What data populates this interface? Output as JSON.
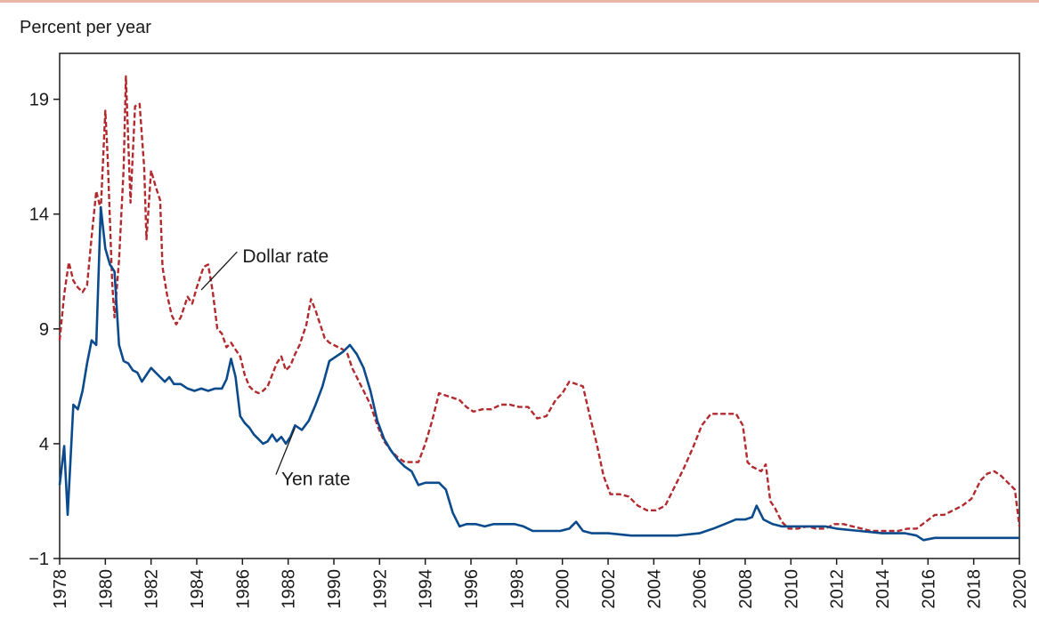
{
  "chart_data": {
    "type": "line",
    "title": "",
    "ylabel": "Percent per year",
    "xlabel": "",
    "xlim": [
      1978,
      2020
    ],
    "ylim": [
      -1,
      21
    ],
    "yticks": [
      -1,
      4,
      9,
      14,
      19
    ],
    "xticks": [
      1978,
      1980,
      1982,
      1984,
      1986,
      1988,
      1990,
      1992,
      1994,
      1996,
      1998,
      2000,
      2002,
      2004,
      2006,
      2008,
      2010,
      2012,
      2014,
      2016,
      2018,
      2020
    ],
    "grid": false,
    "colors": {
      "dollar": "#b22a2e",
      "yen": "#0b4a8c"
    },
    "annotations": [
      {
        "text": "Dollar rate",
        "series": "dollar",
        "at": [
          1984.2,
          10.7
        ],
        "label_at": [
          1986.0,
          12.2
        ]
      },
      {
        "text": "Yen rate",
        "series": "yen",
        "at": [
          1988.3,
          4.7
        ],
        "label_at": [
          1987.7,
          2.5
        ]
      }
    ],
    "series": [
      {
        "name": "Dollar rate",
        "key": "dollar",
        "style": "dashed",
        "points": [
          [
            1978.0,
            8.5
          ],
          [
            1978.2,
            10.5
          ],
          [
            1978.4,
            11.9
          ],
          [
            1978.6,
            11.1
          ],
          [
            1978.8,
            10.8
          ],
          [
            1979.0,
            10.6
          ],
          [
            1979.2,
            10.9
          ],
          [
            1979.4,
            13.0
          ],
          [
            1979.6,
            15.0
          ],
          [
            1979.8,
            14.2
          ],
          [
            1980.0,
            18.5
          ],
          [
            1980.1,
            16.5
          ],
          [
            1980.3,
            11.0
          ],
          [
            1980.4,
            9.5
          ],
          [
            1980.6,
            12.0
          ],
          [
            1980.8,
            16.0
          ],
          [
            1980.9,
            20.0
          ],
          [
            1981.1,
            14.5
          ],
          [
            1981.3,
            18.7
          ],
          [
            1981.5,
            18.8
          ],
          [
            1981.7,
            16.0
          ],
          [
            1981.8,
            12.9
          ],
          [
            1982.0,
            15.9
          ],
          [
            1982.2,
            15.2
          ],
          [
            1982.4,
            14.6
          ],
          [
            1982.5,
            11.7
          ],
          [
            1982.7,
            10.5
          ],
          [
            1982.9,
            9.6
          ],
          [
            1983.1,
            9.2
          ],
          [
            1983.3,
            9.5
          ],
          [
            1983.6,
            10.4
          ],
          [
            1983.8,
            10.1
          ],
          [
            1984.0,
            10.8
          ],
          [
            1984.3,
            11.7
          ],
          [
            1984.5,
            11.8
          ],
          [
            1984.7,
            10.6
          ],
          [
            1984.9,
            9.0
          ],
          [
            1985.1,
            8.8
          ],
          [
            1985.3,
            8.2
          ],
          [
            1985.5,
            8.4
          ],
          [
            1985.7,
            8.1
          ],
          [
            1985.9,
            7.8
          ],
          [
            1986.1,
            7.0
          ],
          [
            1986.3,
            6.5
          ],
          [
            1986.5,
            6.3
          ],
          [
            1986.7,
            6.2
          ],
          [
            1986.9,
            6.3
          ],
          [
            1987.1,
            6.5
          ],
          [
            1987.3,
            7.0
          ],
          [
            1987.5,
            7.5
          ],
          [
            1987.7,
            7.8
          ],
          [
            1987.9,
            7.2
          ],
          [
            1988.1,
            7.4
          ],
          [
            1988.3,
            7.9
          ],
          [
            1988.5,
            8.3
          ],
          [
            1988.8,
            9.2
          ],
          [
            1989.0,
            10.3
          ],
          [
            1989.2,
            9.8
          ],
          [
            1989.4,
            9.2
          ],
          [
            1989.6,
            8.6
          ],
          [
            1989.8,
            8.4
          ],
          [
            1990.0,
            8.3
          ],
          [
            1990.2,
            8.2
          ],
          [
            1990.4,
            8.1
          ],
          [
            1990.6,
            7.9
          ],
          [
            1990.8,
            7.3
          ],
          [
            1991.0,
            6.9
          ],
          [
            1991.3,
            6.3
          ],
          [
            1991.6,
            5.7
          ],
          [
            1991.9,
            4.8
          ],
          [
            1992.2,
            4.1
          ],
          [
            1992.5,
            3.7
          ],
          [
            1992.8,
            3.4
          ],
          [
            1993.1,
            3.2
          ],
          [
            1993.4,
            3.2
          ],
          [
            1993.7,
            3.2
          ],
          [
            1994.0,
            4.0
          ],
          [
            1994.3,
            5.0
          ],
          [
            1994.6,
            6.2
          ],
          [
            1994.9,
            6.1
          ],
          [
            1995.2,
            6.0
          ],
          [
            1995.5,
            5.9
          ],
          [
            1995.8,
            5.6
          ],
          [
            1996.1,
            5.4
          ],
          [
            1996.5,
            5.5
          ],
          [
            1996.9,
            5.5
          ],
          [
            1997.3,
            5.7
          ],
          [
            1997.7,
            5.7
          ],
          [
            1998.1,
            5.6
          ],
          [
            1998.5,
            5.6
          ],
          [
            1998.9,
            5.1
          ],
          [
            1999.3,
            5.2
          ],
          [
            1999.7,
            5.9
          ],
          [
            2000.0,
            6.2
          ],
          [
            2000.3,
            6.7
          ],
          [
            2000.6,
            6.6
          ],
          [
            2000.9,
            6.5
          ],
          [
            2001.2,
            5.2
          ],
          [
            2001.5,
            4.0
          ],
          [
            2001.8,
            2.6
          ],
          [
            2002.1,
            1.8
          ],
          [
            2002.5,
            1.8
          ],
          [
            2002.9,
            1.7
          ],
          [
            2003.3,
            1.3
          ],
          [
            2003.7,
            1.1
          ],
          [
            2004.1,
            1.1
          ],
          [
            2004.5,
            1.3
          ],
          [
            2004.9,
            2.1
          ],
          [
            2005.3,
            2.9
          ],
          [
            2005.7,
            3.8
          ],
          [
            2006.1,
            4.8
          ],
          [
            2006.5,
            5.3
          ],
          [
            2006.9,
            5.3
          ],
          [
            2007.3,
            5.3
          ],
          [
            2007.6,
            5.3
          ],
          [
            2007.9,
            4.8
          ],
          [
            2008.1,
            3.2
          ],
          [
            2008.3,
            3.0
          ],
          [
            2008.5,
            2.9
          ],
          [
            2008.7,
            2.8
          ],
          [
            2008.9,
            3.1
          ],
          [
            2009.1,
            1.5
          ],
          [
            2009.3,
            1.2
          ],
          [
            2009.6,
            0.6
          ],
          [
            2009.9,
            0.3
          ],
          [
            2010.3,
            0.3
          ],
          [
            2010.7,
            0.4
          ],
          [
            2011.1,
            0.3
          ],
          [
            2011.5,
            0.3
          ],
          [
            2011.9,
            0.5
          ],
          [
            2012.3,
            0.5
          ],
          [
            2012.7,
            0.4
          ],
          [
            2013.1,
            0.3
          ],
          [
            2013.5,
            0.2
          ],
          [
            2013.9,
            0.2
          ],
          [
            2014.3,
            0.2
          ],
          [
            2014.7,
            0.2
          ],
          [
            2015.1,
            0.3
          ],
          [
            2015.5,
            0.3
          ],
          [
            2015.9,
            0.6
          ],
          [
            2016.3,
            0.9
          ],
          [
            2016.7,
            0.9
          ],
          [
            2017.1,
            1.1
          ],
          [
            2017.5,
            1.3
          ],
          [
            2017.9,
            1.6
          ],
          [
            2018.3,
            2.4
          ],
          [
            2018.6,
            2.7
          ],
          [
            2018.9,
            2.8
          ],
          [
            2019.2,
            2.6
          ],
          [
            2019.5,
            2.3
          ],
          [
            2019.8,
            2.0
          ],
          [
            2020.0,
            0.4
          ]
        ]
      },
      {
        "name": "Yen rate",
        "key": "yen",
        "style": "solid",
        "points": [
          [
            1978.0,
            2.2
          ],
          [
            1978.2,
            3.9
          ],
          [
            1978.35,
            0.9
          ],
          [
            1978.6,
            5.7
          ],
          [
            1978.8,
            5.5
          ],
          [
            1979.0,
            6.3
          ],
          [
            1979.2,
            7.5
          ],
          [
            1979.4,
            8.5
          ],
          [
            1979.6,
            8.3
          ],
          [
            1979.8,
            14.3
          ],
          [
            1980.0,
            12.5
          ],
          [
            1980.2,
            11.8
          ],
          [
            1980.4,
            11.5
          ],
          [
            1980.6,
            8.3
          ],
          [
            1980.8,
            7.6
          ],
          [
            1981.0,
            7.5
          ],
          [
            1981.2,
            7.2
          ],
          [
            1981.4,
            7.1
          ],
          [
            1981.6,
            6.7
          ],
          [
            1981.8,
            7.0
          ],
          [
            1982.0,
            7.3
          ],
          [
            1982.2,
            7.1
          ],
          [
            1982.4,
            6.9
          ],
          [
            1982.6,
            6.7
          ],
          [
            1982.8,
            6.9
          ],
          [
            1983.0,
            6.6
          ],
          [
            1983.3,
            6.6
          ],
          [
            1983.6,
            6.4
          ],
          [
            1983.9,
            6.3
          ],
          [
            1984.2,
            6.4
          ],
          [
            1984.5,
            6.3
          ],
          [
            1984.8,
            6.4
          ],
          [
            1985.1,
            6.4
          ],
          [
            1985.3,
            6.8
          ],
          [
            1985.5,
            7.7
          ],
          [
            1985.7,
            6.9
          ],
          [
            1985.9,
            5.2
          ],
          [
            1986.1,
            4.9
          ],
          [
            1986.3,
            4.7
          ],
          [
            1986.5,
            4.4
          ],
          [
            1986.7,
            4.2
          ],
          [
            1986.9,
            4.0
          ],
          [
            1987.1,
            4.1
          ],
          [
            1987.3,
            4.4
          ],
          [
            1987.5,
            4.1
          ],
          [
            1987.7,
            4.3
          ],
          [
            1987.9,
            4.0
          ],
          [
            1988.1,
            4.3
          ],
          [
            1988.3,
            4.8
          ],
          [
            1988.6,
            4.6
          ],
          [
            1988.9,
            5.0
          ],
          [
            1989.2,
            5.7
          ],
          [
            1989.5,
            6.5
          ],
          [
            1989.8,
            7.6
          ],
          [
            1990.1,
            7.8
          ],
          [
            1990.4,
            8.0
          ],
          [
            1990.7,
            8.3
          ],
          [
            1991.0,
            7.9
          ],
          [
            1991.3,
            7.3
          ],
          [
            1991.6,
            6.3
          ],
          [
            1991.9,
            5.0
          ],
          [
            1992.2,
            4.2
          ],
          [
            1992.5,
            3.7
          ],
          [
            1992.8,
            3.3
          ],
          [
            1993.1,
            3.0
          ],
          [
            1993.4,
            2.8
          ],
          [
            1993.7,
            2.2
          ],
          [
            1994.0,
            2.3
          ],
          [
            1994.3,
            2.3
          ],
          [
            1994.6,
            2.3
          ],
          [
            1994.9,
            2.0
          ],
          [
            1995.2,
            1.0
          ],
          [
            1995.5,
            0.4
          ],
          [
            1995.8,
            0.5
          ],
          [
            1996.2,
            0.5
          ],
          [
            1996.6,
            0.4
          ],
          [
            1997.0,
            0.5
          ],
          [
            1997.5,
            0.5
          ],
          [
            1997.9,
            0.5
          ],
          [
            1998.3,
            0.4
          ],
          [
            1998.7,
            0.2
          ],
          [
            1999.1,
            0.2
          ],
          [
            1999.5,
            0.2
          ],
          [
            1999.9,
            0.2
          ],
          [
            2000.3,
            0.3
          ],
          [
            2000.6,
            0.6
          ],
          [
            2000.9,
            0.2
          ],
          [
            2001.3,
            0.1
          ],
          [
            2002.0,
            0.1
          ],
          [
            2003.0,
            0.0
          ],
          [
            2004.0,
            0.0
          ],
          [
            2005.0,
            0.0
          ],
          [
            2006.0,
            0.1
          ],
          [
            2006.6,
            0.3
          ],
          [
            2007.1,
            0.5
          ],
          [
            2007.6,
            0.7
          ],
          [
            2008.0,
            0.7
          ],
          [
            2008.3,
            0.8
          ],
          [
            2008.5,
            1.3
          ],
          [
            2008.8,
            0.7
          ],
          [
            2009.2,
            0.5
          ],
          [
            2009.6,
            0.4
          ],
          [
            2010.0,
            0.4
          ],
          [
            2010.5,
            0.4
          ],
          [
            2011.0,
            0.4
          ],
          [
            2011.5,
            0.4
          ],
          [
            2012.0,
            0.3
          ],
          [
            2013.0,
            0.2
          ],
          [
            2014.0,
            0.1
          ],
          [
            2015.0,
            0.1
          ],
          [
            2015.5,
            0.0
          ],
          [
            2015.8,
            -0.2
          ],
          [
            2016.3,
            -0.1
          ],
          [
            2017.0,
            -0.1
          ],
          [
            2018.0,
            -0.1
          ],
          [
            2019.0,
            -0.1
          ],
          [
            2020.0,
            -0.1
          ]
        ]
      }
    ]
  }
}
